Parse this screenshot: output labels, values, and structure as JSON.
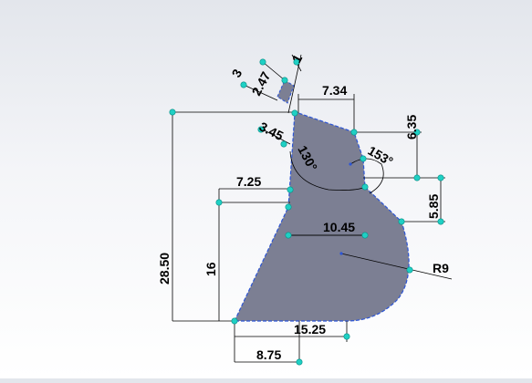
{
  "sketch": {
    "profile_fill": "#7c7f93",
    "edge_color": "#2c55d6",
    "dimension_color": "#000000",
    "point_color": "#1fd0c4"
  },
  "dimensions": {
    "d_3": "3",
    "d_2_47": "2.47",
    "d_1": "1",
    "d_7_34": "7.34",
    "d_6_35": "6.35",
    "d_3_45": "3.45",
    "d_130": "130°",
    "d_153": "153°",
    "d_7_25": "7.25",
    "d_5_85": "5.85",
    "d_10_45": "10.45",
    "d_R9": "R9",
    "d_28_50": "28.50",
    "d_16": "16",
    "d_15_25": "15.25",
    "d_8_75": "8.75"
  }
}
